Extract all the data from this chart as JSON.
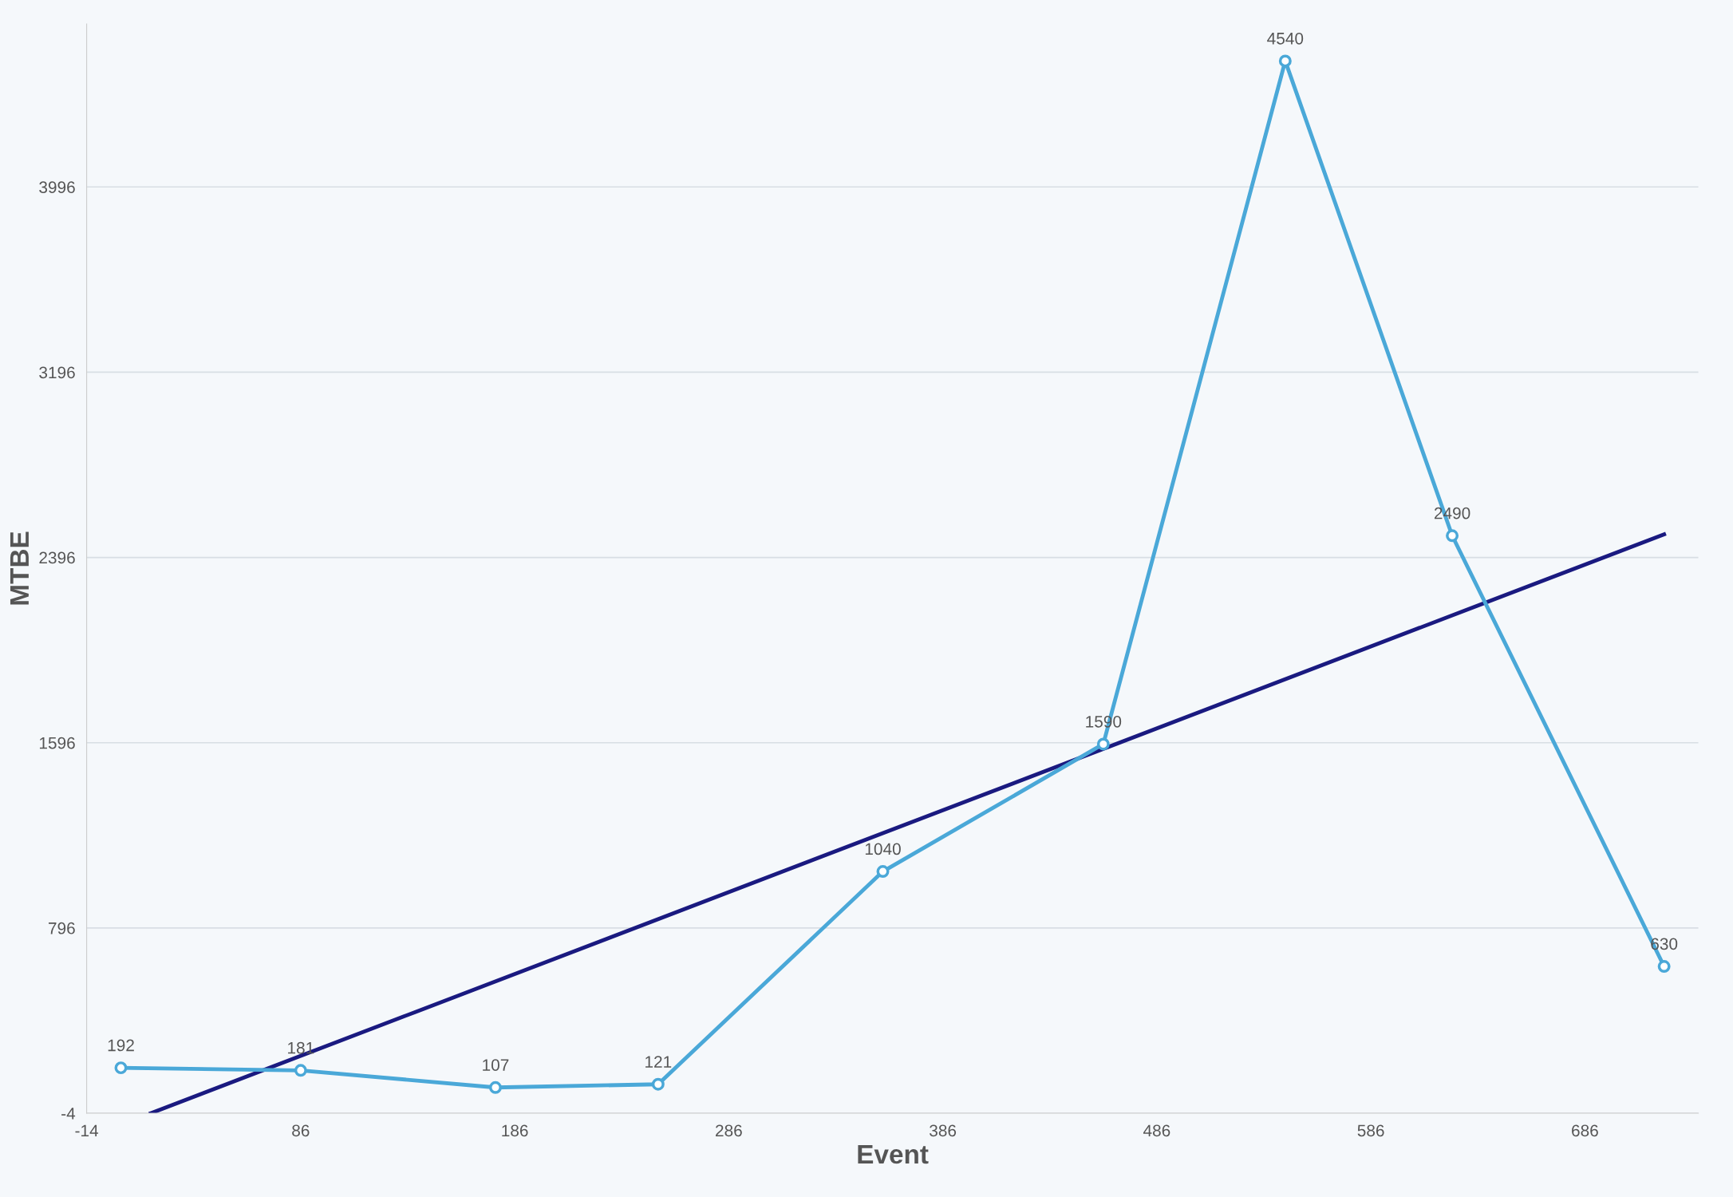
{
  "chart_data": {
    "type": "line",
    "xlabel": "Event",
    "ylabel": "MTBE",
    "xlim": [
      -14,
      739
    ],
    "ylim": [
      -4,
      4700
    ],
    "xticks": [
      -14,
      86,
      186,
      286,
      386,
      486,
      586,
      686
    ],
    "yticks": [
      -4,
      796,
      1596,
      2396,
      3196,
      3996
    ],
    "grid": "y",
    "legend": false,
    "series": [
      {
        "color": "#4aa8d8",
        "marker": "circle",
        "x": [
          2,
          86,
          177,
          253,
          358,
          461,
          546,
          624,
          723
        ],
        "values": [
          192,
          181,
          107,
          121,
          1040,
          1590,
          4540,
          2490,
          630
        ],
        "value_labels": [
          "192",
          "181",
          "107",
          "121",
          "1040",
          "1590",
          "4540",
          "2490",
          "630"
        ]
      },
      {
        "color": "#1a1a80",
        "marker": "none",
        "x": [
          16,
          723
        ],
        "values": [
          -4,
          2496
        ]
      }
    ]
  }
}
